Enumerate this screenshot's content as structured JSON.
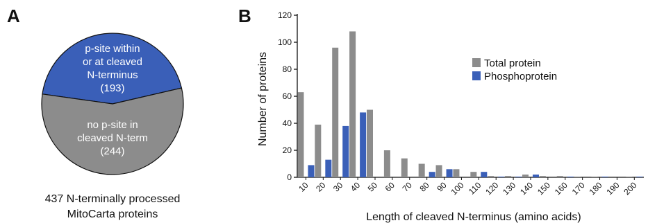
{
  "panel_a": {
    "label": "A",
    "caption_line1": "437 N-terminally processed",
    "caption_line2": "MitoCarta proteins",
    "slices": [
      {
        "lines": [
          "p-site within",
          "or at cleaved",
          "N-terminus",
          "(193)"
        ],
        "value": 193,
        "color": "#3a5fb8"
      },
      {
        "lines": [
          "no p-site in",
          "cleaved N-term",
          "(244)"
        ],
        "value": 244,
        "color": "#8c8c8c"
      }
    ]
  },
  "panel_b": {
    "label": "B",
    "chart_data": {
      "type": "bar",
      "categories": [
        "10",
        "20",
        "30",
        "40",
        "50",
        "60",
        "70",
        "80",
        "90",
        "100",
        "110",
        "120",
        "130",
        "140",
        "150",
        "160",
        "170",
        "180",
        "190",
        "200"
      ],
      "series": [
        {
          "name": "Total protein",
          "color": "#8c8c8c",
          "values": [
            63,
            39,
            96,
            108,
            50,
            20,
            14,
            10,
            9,
            6,
            4,
            1,
            1,
            2,
            1,
            1,
            0.5,
            0.5,
            0,
            0.5
          ]
        },
        {
          "name": "Phosphoprotein",
          "color": "#3a5fb8",
          "values": [
            9,
            13,
            38,
            48,
            0,
            0,
            0,
            4,
            6,
            0,
            4,
            0.5,
            0.5,
            2,
            0,
            0.5,
            0,
            0.5,
            0,
            0.5
          ]
        }
      ],
      "xlabel": "Length of cleaved N-terminus (amino acids)",
      "ylabel": "Number of proteins",
      "ylim": [
        0,
        120
      ],
      "yticks": [
        "0",
        "20",
        "40",
        "60",
        "80",
        "100",
        "120"
      ],
      "legend_position": "upper-middle",
      "grid": false
    }
  }
}
